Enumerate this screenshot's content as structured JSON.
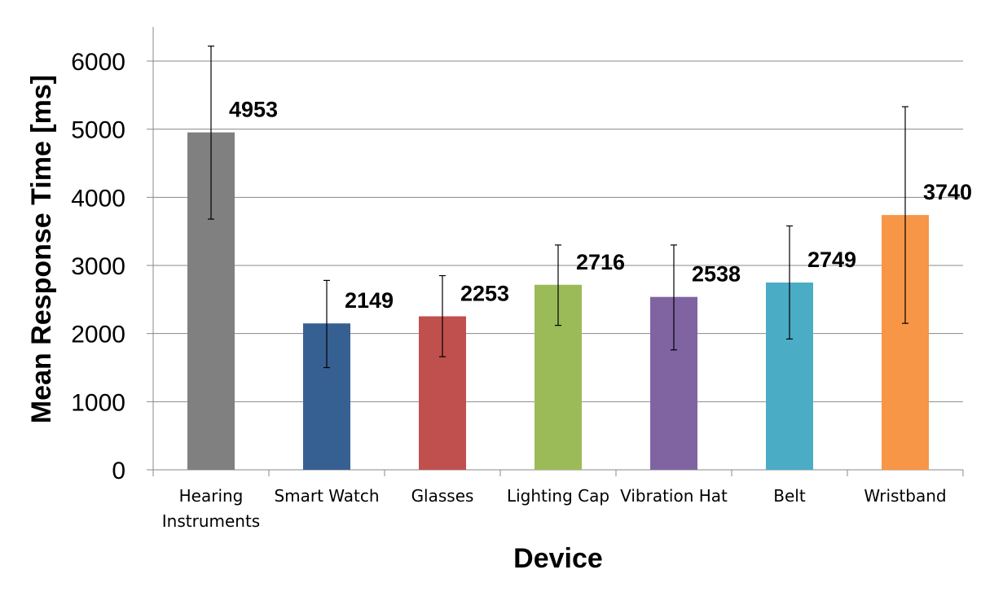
{
  "chart_data": {
    "type": "bar",
    "title": "",
    "xlabel": "Device",
    "ylabel": "Mean Response Time [ms]",
    "ylim": [
      0,
      6500
    ],
    "yticks": [
      0,
      1000,
      2000,
      3000,
      4000,
      5000,
      6000
    ],
    "grid": true,
    "legend": "none",
    "categories": [
      {
        "label_lines": [
          "Hearing",
          "Instruments"
        ],
        "value": 4953,
        "error_low": 3680,
        "error_high": 6220,
        "color": "#808080"
      },
      {
        "label_lines": [
          "Smart Watch"
        ],
        "value": 2149,
        "error_low": 1500,
        "error_high": 2780,
        "color": "#376092"
      },
      {
        "label_lines": [
          "Glasses"
        ],
        "value": 2253,
        "error_low": 1660,
        "error_high": 2850,
        "color": "#C0504D"
      },
      {
        "label_lines": [
          "Lighting Cap"
        ],
        "value": 2716,
        "error_low": 2120,
        "error_high": 3300,
        "color": "#9BBB59"
      },
      {
        "label_lines": [
          "Vibration Hat"
        ],
        "value": 2538,
        "error_low": 1760,
        "error_high": 3300,
        "color": "#8064A2"
      },
      {
        "label_lines": [
          "Belt"
        ],
        "value": 2749,
        "error_low": 1920,
        "error_high": 3580,
        "color": "#4BACC6"
      },
      {
        "label_lines": [
          "Wristband"
        ],
        "value": 3740,
        "error_low": 2150,
        "error_high": 5330,
        "color": "#F79646"
      }
    ]
  }
}
